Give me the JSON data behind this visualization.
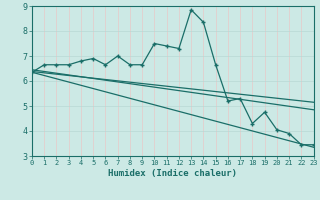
{
  "title": "",
  "xlabel": "Humidex (Indice chaleur)",
  "bg_color": "#cce9e5",
  "plot_bg_color": "#cce9e5",
  "grid_color_v": "#e8c8c8",
  "grid_color_h": "#b8d8d4",
  "line_color": "#1a6e68",
  "xlim": [
    0,
    23
  ],
  "ylim": [
    3,
    9
  ],
  "yticks": [
    3,
    4,
    5,
    6,
    7,
    8,
    9
  ],
  "xticks": [
    0,
    1,
    2,
    3,
    4,
    5,
    6,
    7,
    8,
    9,
    10,
    11,
    12,
    13,
    14,
    15,
    16,
    17,
    18,
    19,
    20,
    21,
    22,
    23
  ],
  "main_x": [
    0,
    1,
    2,
    3,
    4,
    5,
    6,
    7,
    8,
    9,
    10,
    11,
    12,
    13,
    14,
    15,
    16,
    17,
    18,
    19,
    20,
    21,
    22,
    23
  ],
  "main_y": [
    6.35,
    6.65,
    6.65,
    6.65,
    6.8,
    6.9,
    6.65,
    7.0,
    6.65,
    6.65,
    7.5,
    7.4,
    7.3,
    8.85,
    8.35,
    6.65,
    5.2,
    5.3,
    4.3,
    4.75,
    4.05,
    3.9,
    3.45,
    3.45
  ],
  "trend1_x": [
    0,
    23
  ],
  "trend1_y": [
    6.45,
    4.85
  ],
  "trend2_x": [
    0,
    23
  ],
  "trend2_y": [
    6.38,
    5.15
  ],
  "trend3_x": [
    0,
    23
  ],
  "trend3_y": [
    6.35,
    3.35
  ]
}
